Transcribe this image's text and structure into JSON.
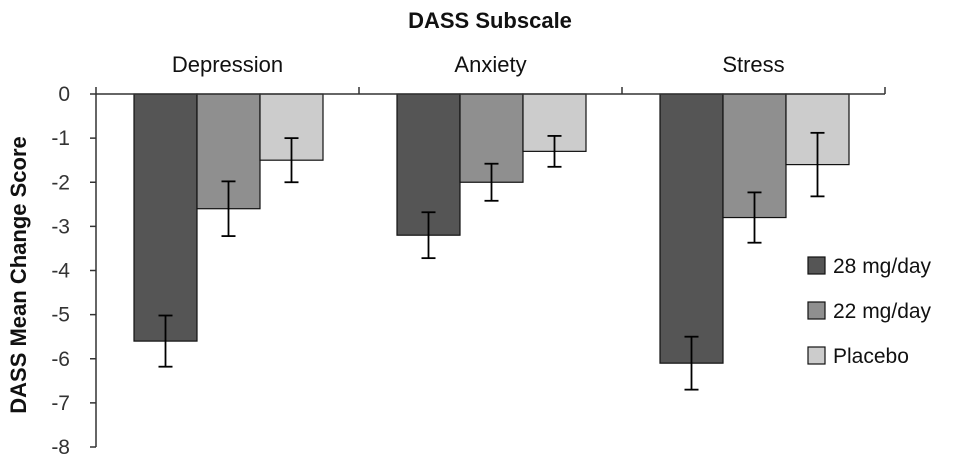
{
  "chart_data": {
    "type": "bar",
    "title": "DASS Subscale",
    "ylabel": "DASS Mean Change Score",
    "xlabel": "",
    "categories": [
      "Depression",
      "Anxiety",
      "Stress"
    ],
    "ylim": [
      -8,
      0
    ],
    "yticks": [
      0,
      -1,
      -2,
      -3,
      -4,
      -5,
      -6,
      -7,
      -8
    ],
    "category_axis_position": "top",
    "legend_position": "right",
    "grid": false,
    "series": [
      {
        "name": "28 mg/day",
        "color": "#555555",
        "values": [
          -5.6,
          -3.2,
          -6.1
        ],
        "errors": [
          0.58,
          0.52,
          0.6
        ]
      },
      {
        "name": "22 mg/day",
        "color": "#8f8f8f",
        "values": [
          -2.6,
          -2.0,
          -2.8
        ],
        "errors": [
          0.62,
          0.42,
          0.57
        ]
      },
      {
        "name": "Placebo",
        "color": "#cccccc",
        "values": [
          -1.5,
          -1.3,
          -1.6
        ],
        "errors": [
          0.5,
          0.35,
          0.72
        ]
      }
    ]
  }
}
